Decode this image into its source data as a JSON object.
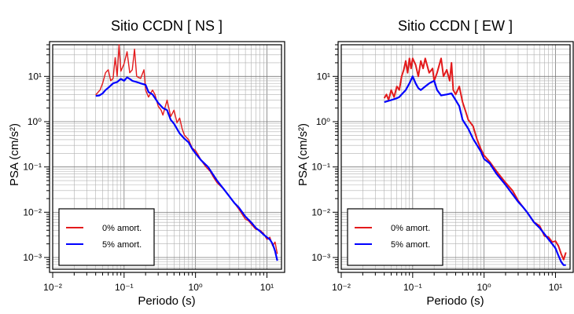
{
  "chart_data": [
    {
      "type": "line",
      "title": "Sitio CCDN [ NS ]",
      "xlabel": "Periodo (s)",
      "ylabel": "PSA (cm/s²)",
      "xscale": "log",
      "yscale": "log",
      "xlim": [
        0.01,
        16
      ],
      "ylim": [
        0.00055,
        50
      ],
      "grid": true,
      "legend_position": "bottom-left",
      "x_tick_labels": [
        "10⁻²",
        "10⁻¹",
        "10⁰",
        "10¹"
      ],
      "y_tick_labels": [
        "10⁻³",
        "10⁻²",
        "10⁻¹",
        "10⁰",
        "10¹"
      ],
      "series": [
        {
          "name": "0% amort.",
          "color": "#e31a1c",
          "x": [
            0.04,
            0.046,
            0.05,
            0.055,
            0.06,
            0.065,
            0.07,
            0.075,
            0.08,
            0.085,
            0.09,
            0.1,
            0.11,
            0.12,
            0.13,
            0.14,
            0.15,
            0.17,
            0.19,
            0.2,
            0.22,
            0.25,
            0.27,
            0.3,
            0.33,
            0.35,
            0.4,
            0.45,
            0.5,
            0.55,
            0.6,
            0.65,
            0.7,
            0.8,
            0.9,
            1.0,
            1.1,
            1.2,
            1.4,
            1.6,
            1.8,
            2.0,
            2.5,
            3.0,
            3.5,
            4.0,
            4.5,
            5.0,
            5.5,
            6.0,
            7.0,
            8.0,
            9.0,
            10,
            11,
            12,
            13,
            14
          ],
          "values": [
            3.9,
            5.0,
            7.0,
            12,
            14,
            8,
            9,
            26,
            10,
            50,
            13,
            19,
            35,
            12,
            14,
            40,
            10,
            9,
            14,
            5,
            3.5,
            5,
            4,
            2.2,
            1.8,
            1.4,
            3.0,
            1.3,
            1.8,
            0.95,
            1.2,
            0.7,
            0.5,
            0.4,
            0.26,
            0.23,
            0.18,
            0.14,
            0.1,
            0.08,
            0.058,
            0.045,
            0.032,
            0.022,
            0.016,
            0.012,
            0.009,
            0.007,
            0.0065,
            0.0055,
            0.0042,
            0.004,
            0.0034,
            0.0025,
            0.0028,
            0.0018,
            0.0022,
            0.0012
          ]
        },
        {
          "name": "5% amort.",
          "color": "#0000ff",
          "x": [
            0.04,
            0.045,
            0.05,
            0.055,
            0.06,
            0.07,
            0.08,
            0.09,
            0.1,
            0.11,
            0.12,
            0.13,
            0.15,
            0.17,
            0.2,
            0.22,
            0.25,
            0.3,
            0.35,
            0.4,
            0.45,
            0.5,
            0.6,
            0.7,
            0.8,
            0.9,
            1.0,
            1.2,
            1.5,
            2.0,
            2.5,
            3.0,
            3.5,
            4.0,
            5.0,
            6.0,
            7.0,
            8.0,
            9.0,
            10,
            11,
            12,
            13,
            14
          ],
          "values": [
            3.7,
            3.8,
            4.2,
            5.0,
            5.6,
            7.0,
            7.5,
            8.8,
            8.0,
            9.5,
            8.8,
            8.0,
            7.5,
            7.0,
            6.5,
            4.5,
            4.0,
            2.6,
            2.0,
            1.8,
            1.1,
            0.9,
            0.55,
            0.42,
            0.35,
            0.25,
            0.2,
            0.14,
            0.1,
            0.05,
            0.032,
            0.022,
            0.016,
            0.013,
            0.008,
            0.006,
            0.0045,
            0.0038,
            0.0032,
            0.0028,
            0.0025,
            0.002,
            0.0014,
            0.00085
          ]
        }
      ]
    },
    {
      "type": "line",
      "title": "Sitio CCDN [ EW ]",
      "xlabel": "Periodo (s)",
      "ylabel": "PSA (cm/s²)",
      "xscale": "log",
      "yscale": "log",
      "xlim": [
        0.01,
        16
      ],
      "ylim": [
        0.00055,
        50
      ],
      "grid": true,
      "legend_position": "bottom-left",
      "x_tick_labels": [
        "10⁻²",
        "10⁻¹",
        "10⁰",
        "10¹"
      ],
      "y_tick_labels": [
        "10⁻³",
        "10⁻²",
        "10⁻¹",
        "10⁰",
        "10¹"
      ],
      "series": [
        {
          "name": "0% amort.",
          "color": "#e31a1c",
          "x": [
            0.04,
            0.043,
            0.046,
            0.05,
            0.055,
            0.06,
            0.065,
            0.07,
            0.075,
            0.08,
            0.085,
            0.09,
            0.095,
            0.1,
            0.11,
            0.12,
            0.13,
            0.14,
            0.15,
            0.17,
            0.19,
            0.2,
            0.22,
            0.25,
            0.27,
            0.3,
            0.33,
            0.35,
            0.37,
            0.4,
            0.45,
            0.5,
            0.55,
            0.6,
            0.7,
            0.8,
            0.9,
            1.0,
            1.2,
            1.5,
            2.0,
            2.5,
            3.0,
            3.5,
            4.0,
            5.0,
            6.0,
            7.0,
            8.0,
            9.0,
            10,
            11,
            12,
            13,
            14
          ],
          "values": [
            3.3,
            4.0,
            3.0,
            5.0,
            3.5,
            6.0,
            5.0,
            10,
            14,
            22,
            12,
            25,
            15,
            25,
            18,
            10,
            22,
            15,
            25,
            12,
            15,
            8,
            12,
            25,
            10,
            14,
            8,
            20,
            5,
            4,
            6,
            2.7,
            1.7,
            1.1,
            0.8,
            0.4,
            0.25,
            0.18,
            0.13,
            0.08,
            0.045,
            0.03,
            0.018,
            0.013,
            0.01,
            0.006,
            0.005,
            0.003,
            0.0028,
            0.0022,
            0.0023,
            0.0018,
            0.0012,
            0.0009,
            0.0013
          ]
        },
        {
          "name": "5% amort.",
          "color": "#0000ff",
          "x": [
            0.04,
            0.05,
            0.06,
            0.065,
            0.07,
            0.08,
            0.09,
            0.1,
            0.11,
            0.12,
            0.13,
            0.15,
            0.17,
            0.2,
            0.22,
            0.25,
            0.3,
            0.35,
            0.4,
            0.45,
            0.5,
            0.6,
            0.7,
            0.8,
            0.9,
            1.0,
            1.2,
            1.5,
            2.0,
            2.5,
            3.0,
            3.5,
            4.0,
            5.0,
            6.0,
            7.0,
            8.0,
            9.0,
            10,
            11,
            12,
            13,
            14
          ],
          "values": [
            2.7,
            3.0,
            3.3,
            3.5,
            4.0,
            5.0,
            7.0,
            10,
            7.0,
            5.5,
            5.0,
            6.0,
            7.0,
            8.0,
            5.0,
            3.8,
            4.0,
            4.2,
            3.0,
            2.2,
            1.1,
            0.7,
            0.42,
            0.3,
            0.22,
            0.15,
            0.12,
            0.07,
            0.04,
            0.025,
            0.017,
            0.013,
            0.01,
            0.006,
            0.0045,
            0.0033,
            0.0025,
            0.002,
            0.0016,
            0.0011,
            0.0008,
            0.00068,
            0.00068
          ]
        }
      ]
    }
  ]
}
